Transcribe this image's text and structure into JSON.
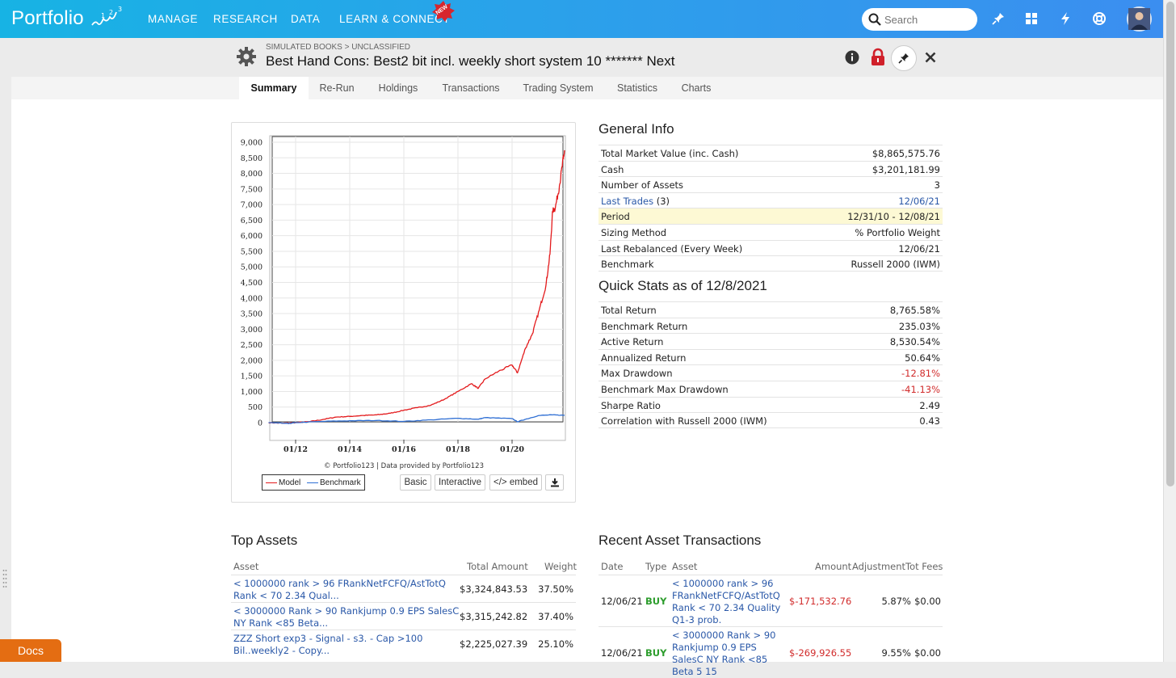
{
  "nav": {
    "logo": "Portfolio",
    "items": [
      "MANAGE",
      "RESEARCH",
      "DATA",
      "LEARN & CONNECT"
    ],
    "new_badge": "NEW",
    "search_placeholder": "Search"
  },
  "header": {
    "breadcrumb": "SIMULATED BOOKS > UNCLASSIFIED",
    "title": "Best Hand Cons: Best2 bit incl. weekly short system 10 ******* Next"
  },
  "tabs": [
    "Summary",
    "Re-Run",
    "Holdings",
    "Transactions",
    "Trading System",
    "Statistics",
    "Charts"
  ],
  "chart_data": {
    "type": "line",
    "y_ticks": [
      "9,000",
      "8,500",
      "8,000",
      "7,500",
      "7,000",
      "6,500",
      "6,000",
      "5,500",
      "5,000",
      "4,500",
      "4,000",
      "3,500",
      "3,000",
      "2,500",
      "2,000",
      "1,500",
      "1,000",
      "500",
      "0"
    ],
    "x_ticks": [
      "01/12",
      "01/14",
      "01/16",
      "01/18",
      "01/20"
    ],
    "ylim": [
      0,
      9000
    ],
    "xlim": [
      2011.0,
      2022.0
    ],
    "grid": true,
    "credit": "© Portfolio123 | Data provided by Portfolio123",
    "series": [
      {
        "name": "Model",
        "color": "#e31a1c",
        "x": [
          2011.0,
          2011.5,
          2012.0,
          2012.5,
          2013.0,
          2013.5,
          2014.0,
          2014.5,
          2015.0,
          2015.5,
          2016.0,
          2016.5,
          2017.0,
          2017.5,
          2018.0,
          2018.5,
          2018.75,
          2019.0,
          2019.5,
          2020.0,
          2020.2,
          2020.5,
          2020.75,
          2021.0,
          2021.25,
          2021.4,
          2021.5,
          2021.6,
          2021.75,
          2021.9,
          2021.94
        ],
        "y": [
          0,
          -20,
          0,
          30,
          100,
          180,
          200,
          230,
          250,
          300,
          400,
          480,
          560,
          750,
          1000,
          1250,
          1100,
          1400,
          1650,
          1850,
          1600,
          2400,
          2850,
          3600,
          4400,
          5400,
          6800,
          6900,
          7600,
          8500,
          8700
        ]
      },
      {
        "name": "Benchmark",
        "color": "#2f6fd4",
        "x": [
          2011.0,
          2011.75,
          2012.0,
          2013.0,
          2014.0,
          2015.0,
          2016.0,
          2017.0,
          2018.0,
          2018.75,
          2019.0,
          2020.0,
          2020.2,
          2020.5,
          2021.0,
          2021.5,
          2021.94
        ],
        "y": [
          0,
          -30,
          0,
          40,
          60,
          70,
          40,
          90,
          140,
          110,
          160,
          130,
          30,
          110,
          230,
          250,
          235
        ]
      }
    ]
  },
  "chart_legend": [
    "Model",
    "Benchmark"
  ],
  "chart_buttons": [
    "Basic",
    "Interactive",
    "</> embed"
  ],
  "general_info": {
    "title": "General Info",
    "rows": [
      {
        "label": "Total Market Value (inc. Cash)",
        "value": "$8,865,575.76"
      },
      {
        "label": "Cash",
        "value": "$3,201,181.99"
      },
      {
        "label": "Number of Assets",
        "value": "3"
      },
      {
        "label": "Last Trades",
        "label_suffix": "(3)",
        "value": "12/06/21"
      },
      {
        "label": "Period",
        "value": "12/31/10 - 12/08/21"
      },
      {
        "label": "Sizing Method",
        "value": "% Portfolio Weight"
      },
      {
        "label": "Last Rebalanced (Every Week)",
        "value": "12/06/21"
      },
      {
        "label": "Benchmark",
        "value": "Russell 2000 (IWM)"
      }
    ]
  },
  "quick_stats": {
    "title": "Quick Stats as of 12/8/2021",
    "rows": [
      {
        "label": "Total Return",
        "value": "8,765.58%"
      },
      {
        "label": "Benchmark Return",
        "value": "235.03%"
      },
      {
        "label": "Active Return",
        "value": "8,530.54%"
      },
      {
        "label": "Annualized Return",
        "value": "50.64%"
      },
      {
        "label": "Max Drawdown",
        "value": "-12.81%"
      },
      {
        "label": "Benchmark Max Drawdown",
        "value": "-41.13%"
      },
      {
        "label": "Sharpe Ratio",
        "value": "2.49"
      },
      {
        "label": "Correlation with Russell 2000 (IWM)",
        "value": "0.43"
      }
    ]
  },
  "top_assets": {
    "title": "Top Assets",
    "headers": [
      "Asset",
      "Total Amount",
      "Weight"
    ],
    "rows": [
      {
        "asset": "< 1000000 rank > 96 FRankNetFCFQ/AstTotQ Rank < 70 2.34 Qual...",
        "amount": "$3,324,843.53",
        "weight": "37.50%"
      },
      {
        "asset": "< 3000000 Rank > 90 Rankjump 0.9 EPS SalesC NY Rank <85 Beta...",
        "amount": "$3,315,242.82",
        "weight": "37.40%"
      },
      {
        "asset": "ZZZ Short exp3 - Signal - s3. - Cap >100 Bil..weekly2 - Copy...",
        "amount": "$2,225,027.39",
        "weight": "25.10%"
      }
    ]
  },
  "recent_transactions": {
    "title": "Recent Asset Transactions",
    "headers": [
      "Date",
      "Type",
      "Asset",
      "Amount",
      "Adjustment",
      "Tot Fees"
    ],
    "rows": [
      {
        "date": "12/06/21",
        "type": "BUY",
        "asset": "< 1000000 rank > 96 FRankNetFCFQ/AstTotQ Rank < 70 2.34 Quality Q1-3 prob.",
        "amount": "$-171,532.76",
        "adjustment": "5.87%",
        "fees": "$0.00"
      },
      {
        "date": "12/06/21",
        "type": "BUY",
        "asset": "< 3000000 Rank > 90 Rankjump 0.9 EPS SalesC NY Rank <85 Beta 5 15",
        "amount": "$-269,926.55",
        "adjustment": "9.55%",
        "fees": "$0.00"
      }
    ]
  },
  "docs_label": "Docs"
}
